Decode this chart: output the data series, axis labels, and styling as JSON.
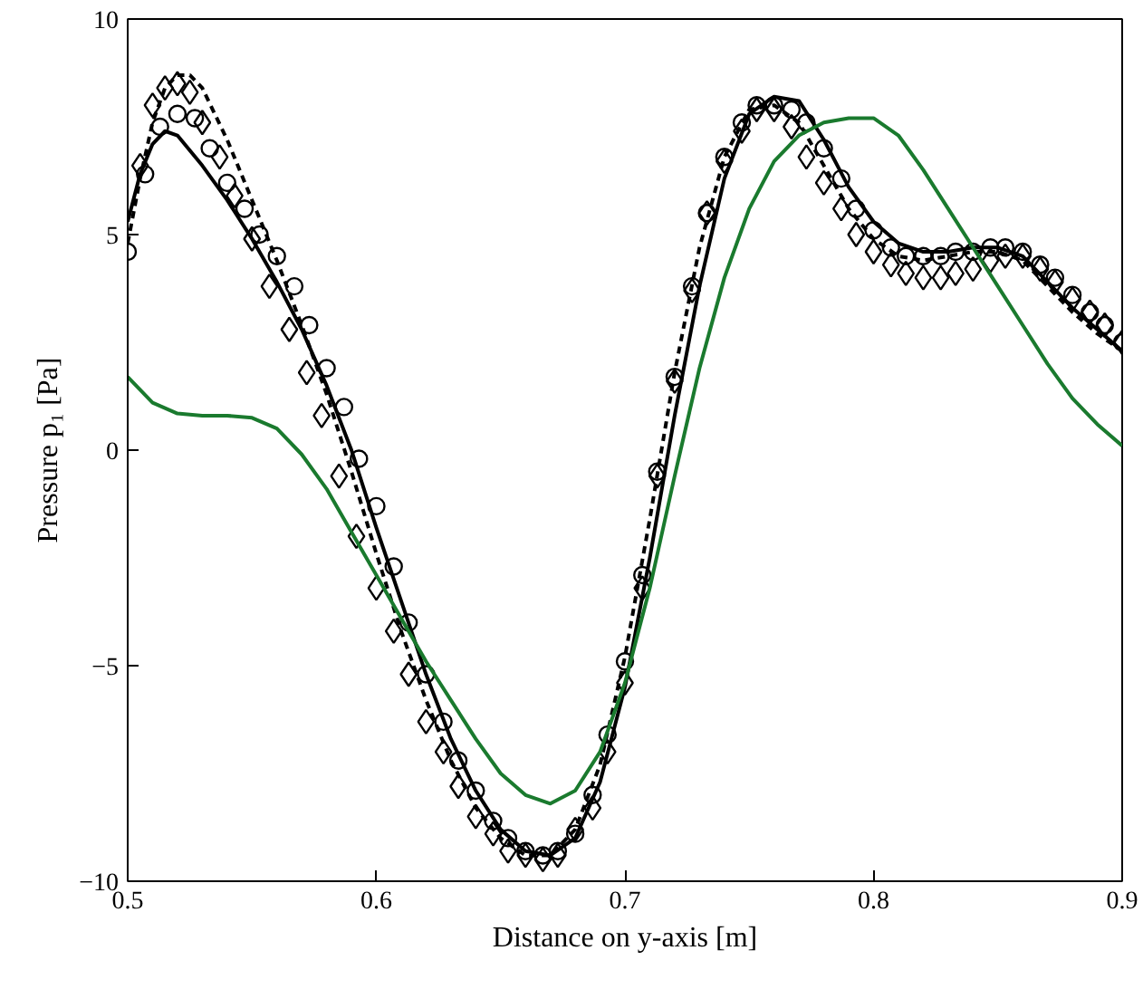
{
  "chart_data": {
    "type": "line",
    "xlabel": "Distance on y-axis [m]",
    "ylabel": "Pressure p₁ [Pa]",
    "xlim": [
      0.5,
      0.9
    ],
    "ylim": [
      -10,
      10
    ],
    "xticks": [
      0.5,
      0.6,
      0.7,
      0.8,
      0.9
    ],
    "yticks": [
      {
        "value": -10,
        "label": "−10"
      },
      {
        "value": -5,
        "label": "−5"
      },
      0,
      5,
      10
    ],
    "grid": false,
    "series": [
      {
        "color": "#000000",
        "line_style": "solid",
        "marker": "none",
        "x": [
          0.5,
          0.505,
          0.51,
          0.515,
          0.52,
          0.53,
          0.54,
          0.55,
          0.56,
          0.57,
          0.58,
          0.59,
          0.6,
          0.61,
          0.62,
          0.63,
          0.64,
          0.65,
          0.66,
          0.67,
          0.68,
          0.69,
          0.7,
          0.71,
          0.72,
          0.73,
          0.74,
          0.75,
          0.76,
          0.77,
          0.78,
          0.79,
          0.8,
          0.81,
          0.82,
          0.83,
          0.84,
          0.85,
          0.86,
          0.87,
          0.88,
          0.89,
          0.9
        ],
        "values": [
          5.3,
          6.4,
          7.1,
          7.4,
          7.3,
          6.6,
          5.8,
          4.9,
          3.9,
          2.8,
          1.5,
          0.0,
          -1.8,
          -3.5,
          -5.2,
          -6.7,
          -7.9,
          -8.8,
          -9.3,
          -9.4,
          -9.0,
          -7.7,
          -5.5,
          -2.5,
          0.8,
          3.8,
          6.3,
          7.8,
          8.2,
          8.1,
          7.2,
          6.1,
          5.3,
          4.8,
          4.6,
          4.6,
          4.7,
          4.7,
          4.5,
          3.9,
          3.3,
          2.8,
          2.3
        ]
      },
      {
        "color": "#000000",
        "line_style": "dashed",
        "marker": "none",
        "x": [
          0.5,
          0.505,
          0.51,
          0.515,
          0.52,
          0.525,
          0.53,
          0.54,
          0.55,
          0.56,
          0.57,
          0.58,
          0.59,
          0.6,
          0.61,
          0.62,
          0.63,
          0.64,
          0.65,
          0.66,
          0.67,
          0.68,
          0.69,
          0.7,
          0.71,
          0.72,
          0.73,
          0.74,
          0.75,
          0.76,
          0.77,
          0.78,
          0.79,
          0.8,
          0.81,
          0.82,
          0.83,
          0.84,
          0.85,
          0.86,
          0.87,
          0.88,
          0.89,
          0.9
        ],
        "values": [
          4.8,
          6.3,
          7.6,
          8.4,
          8.7,
          8.7,
          8.4,
          7.2,
          5.8,
          4.4,
          2.9,
          1.3,
          -0.5,
          -2.4,
          -4.2,
          -5.8,
          -7.2,
          -8.3,
          -9.0,
          -9.4,
          -9.4,
          -8.8,
          -7.3,
          -4.8,
          -1.6,
          1.8,
          4.7,
          6.8,
          7.9,
          8.0,
          7.6,
          6.6,
          5.6,
          4.9,
          4.5,
          4.4,
          4.5,
          4.6,
          4.6,
          4.4,
          3.8,
          3.2,
          2.7,
          2.3
        ]
      },
      {
        "type": "scatter",
        "color": "#000000",
        "marker": "circle",
        "x": [
          0.5,
          0.507,
          0.513,
          0.52,
          0.527,
          0.533,
          0.54,
          0.547,
          0.553,
          0.56,
          0.567,
          0.573,
          0.58,
          0.587,
          0.593,
          0.6,
          0.607,
          0.613,
          0.62,
          0.627,
          0.633,
          0.64,
          0.647,
          0.653,
          0.66,
          0.667,
          0.673,
          0.68,
          0.687,
          0.693,
          0.7,
          0.707,
          0.713,
          0.72,
          0.727,
          0.733,
          0.74,
          0.747,
          0.753,
          0.76,
          0.767,
          0.773,
          0.78,
          0.787,
          0.793,
          0.8,
          0.807,
          0.813,
          0.82,
          0.827,
          0.833,
          0.84,
          0.847,
          0.853,
          0.86,
          0.867,
          0.873,
          0.88,
          0.887,
          0.893,
          0.9
        ],
        "values": [
          4.6,
          6.4,
          7.5,
          7.8,
          7.7,
          7.0,
          6.2,
          5.6,
          5.0,
          4.5,
          3.8,
          2.9,
          1.9,
          1.0,
          -0.2,
          -1.3,
          -2.7,
          -4.0,
          -5.2,
          -6.3,
          -7.2,
          -7.9,
          -8.6,
          -9.0,
          -9.3,
          -9.4,
          -9.3,
          -8.9,
          -8.0,
          -6.6,
          -4.9,
          -2.9,
          -0.5,
          1.7,
          3.8,
          5.5,
          6.8,
          7.6,
          8.0,
          8.0,
          7.9,
          7.6,
          7.0,
          6.3,
          5.6,
          5.1,
          4.7,
          4.5,
          4.5,
          4.5,
          4.6,
          4.6,
          4.7,
          4.7,
          4.6,
          4.3,
          4.0,
          3.6,
          3.2,
          2.9,
          2.5
        ]
      },
      {
        "type": "scatter",
        "color": "#000000",
        "marker": "diamond",
        "x": [
          0.505,
          0.51,
          0.515,
          0.52,
          0.525,
          0.53,
          0.537,
          0.543,
          0.55,
          0.557,
          0.565,
          0.572,
          0.578,
          0.585,
          0.592,
          0.6,
          0.607,
          0.613,
          0.62,
          0.627,
          0.633,
          0.64,
          0.647,
          0.653,
          0.66,
          0.667,
          0.673,
          0.68,
          0.687,
          0.693,
          0.7,
          0.707,
          0.713,
          0.72,
          0.727,
          0.733,
          0.74,
          0.747,
          0.753,
          0.76,
          0.767,
          0.773,
          0.78,
          0.787,
          0.793,
          0.8,
          0.807,
          0.813,
          0.82,
          0.827,
          0.833,
          0.84,
          0.847,
          0.853,
          0.86,
          0.867,
          0.873,
          0.88,
          0.887,
          0.893,
          0.9
        ],
        "values": [
          6.6,
          8.0,
          8.4,
          8.5,
          8.3,
          7.6,
          6.8,
          5.9,
          4.9,
          3.8,
          2.8,
          1.8,
          0.8,
          -0.6,
          -2.0,
          -3.2,
          -4.2,
          -5.2,
          -6.3,
          -7.0,
          -7.8,
          -8.5,
          -8.9,
          -9.3,
          -9.4,
          -9.5,
          -9.4,
          -8.8,
          -8.3,
          -7.0,
          -5.4,
          -3.2,
          -0.6,
          1.6,
          3.7,
          5.5,
          6.7,
          7.4,
          7.9,
          7.9,
          7.5,
          6.8,
          6.2,
          5.6,
          5.0,
          4.6,
          4.3,
          4.1,
          4.0,
          4.0,
          4.1,
          4.2,
          4.4,
          4.5,
          4.5,
          4.2,
          3.9,
          3.5,
          3.2,
          2.9,
          2.5
        ]
      },
      {
        "color": "#1a7a2e",
        "line_style": "solid",
        "marker": "none",
        "x": [
          0.5,
          0.51,
          0.52,
          0.53,
          0.54,
          0.55,
          0.56,
          0.57,
          0.58,
          0.59,
          0.6,
          0.61,
          0.62,
          0.63,
          0.64,
          0.65,
          0.66,
          0.67,
          0.68,
          0.69,
          0.7,
          0.71,
          0.72,
          0.73,
          0.74,
          0.75,
          0.76,
          0.77,
          0.78,
          0.79,
          0.8,
          0.81,
          0.82,
          0.83,
          0.84,
          0.85,
          0.86,
          0.87,
          0.88,
          0.89,
          0.9
        ],
        "values": [
          1.7,
          1.1,
          0.85,
          0.8,
          0.8,
          0.75,
          0.5,
          -0.1,
          -0.9,
          -1.9,
          -2.9,
          -3.9,
          -4.9,
          -5.8,
          -6.7,
          -7.5,
          -8.0,
          -8.2,
          -7.9,
          -7.0,
          -5.4,
          -3.2,
          -0.6,
          1.9,
          4.0,
          5.6,
          6.7,
          7.3,
          7.6,
          7.7,
          7.7,
          7.3,
          6.5,
          5.6,
          4.7,
          3.8,
          2.9,
          2.0,
          1.2,
          0.6,
          0.1
        ]
      }
    ]
  }
}
